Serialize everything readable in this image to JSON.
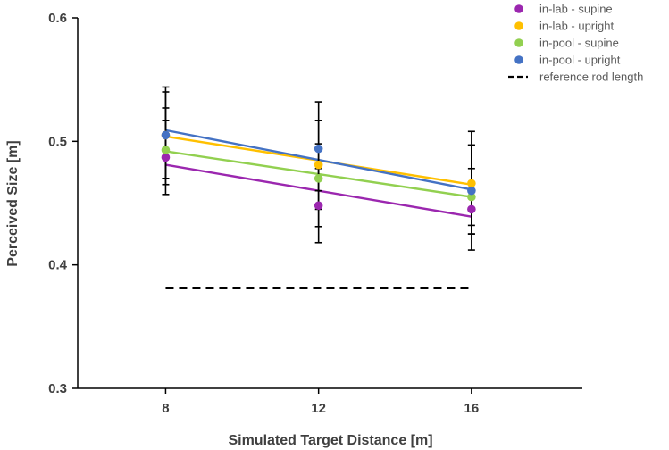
{
  "chart_data": {
    "type": "scatter",
    "title": "",
    "xlabel": "Simulated Target Distance [m]",
    "ylabel": "Perceived Size [m]",
    "x_ticks": [
      8,
      12,
      16
    ],
    "x_tick_labels": [
      "8",
      "12",
      "16"
    ],
    "xlim": [
      5.7,
      18.9
    ],
    "ylim": [
      0.3,
      0.6
    ],
    "y_ticks": [
      0.3,
      0.4,
      0.5,
      0.6
    ],
    "y_tick_labels": [
      "0.3",
      "0.4",
      "0.5",
      "0.6"
    ],
    "grid": false,
    "legend_position": "top-right",
    "series": [
      {
        "name": "in-lab - supine",
        "color": "#9b27af",
        "x": [
          8,
          12,
          16
        ],
        "y": [
          0.487,
          0.448,
          0.445
        ],
        "err_low": [
          0.457,
          0.418,
          0.412
        ],
        "err_high": [
          0.517,
          0.478,
          0.478
        ],
        "fit": [
          0.481,
          0.439
        ]
      },
      {
        "name": "in-lab - upright",
        "color": "#ffc000",
        "x": [
          8,
          12,
          16
        ],
        "y": [
          0.505,
          0.481,
          0.466
        ],
        "err_low": [
          0.465,
          0.431,
          0.425
        ],
        "err_high": [
          0.54,
          0.517,
          0.508
        ],
        "fit": [
          0.504,
          0.465
        ]
      },
      {
        "name": "in-pool - supine",
        "color": "#92d050",
        "x": [
          8,
          12,
          16
        ],
        "y": [
          0.493,
          0.47,
          0.455
        ],
        "err_low": [
          0.47,
          0.445,
          0.425
        ],
        "err_high": [
          0.527,
          0.498,
          0.497
        ],
        "fit": [
          0.492,
          0.455
        ]
      },
      {
        "name": "in-pool - upright",
        "color": "#4472c4",
        "x": [
          8,
          12,
          16
        ],
        "y": [
          0.505,
          0.494,
          0.46
        ],
        "err_low": [
          0.47,
          0.46,
          0.432
        ],
        "err_high": [
          0.544,
          0.532,
          0.497
        ],
        "fit": [
          0.509,
          0.461
        ]
      }
    ],
    "reference": {
      "name": "reference rod length",
      "value": 0.381,
      "x_range": [
        8,
        16
      ],
      "color": "#000000"
    }
  }
}
